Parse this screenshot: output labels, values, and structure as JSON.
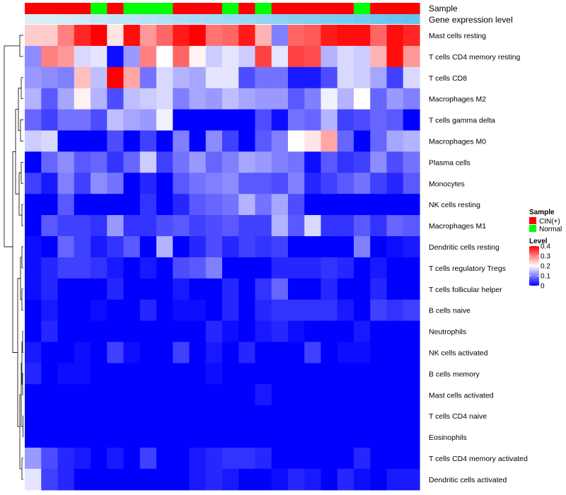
{
  "chart_data": {
    "type": "heatmap",
    "title": "",
    "annotation_tracks": [
      {
        "name": "Sample",
        "values": [
          "CIN(+)",
          "CIN(+)",
          "CIN(+)",
          "CIN(+)",
          "Normal",
          "CIN(+)",
          "Normal",
          "Normal",
          "Normal",
          "CIN(+)",
          "CIN(+)",
          "CIN(+)",
          "Normal",
          "CIN(+)",
          "Normal",
          "CIN(+)",
          "CIN(+)",
          "CIN(+)",
          "CIN(+)",
          "CIN(+)",
          "Normal",
          "CIN(+)",
          "CIN(+)",
          "CIN(+)"
        ]
      },
      {
        "name": "Gene expression level",
        "values": [
          0.0,
          0.02,
          0.04,
          0.06,
          0.09,
          0.11,
          0.13,
          0.15,
          0.17,
          0.2,
          0.22,
          0.24,
          0.26,
          0.28,
          0.3,
          0.33,
          0.35,
          0.37,
          0.39,
          0.41,
          0.43,
          0.46,
          0.48,
          0.5
        ]
      }
    ],
    "rows": [
      "Mast cells resting",
      "T cells CD4 memory resting",
      "T cells CD8",
      "Macrophages M2",
      "T cells gamma delta",
      "Macrophages M0",
      "Plasma cells",
      "Monocytes",
      "NK cells resting",
      "Macrophages M1",
      "Dendritic cells resting",
      "T cells regulatory  Tregs",
      "T cells follicular helper",
      "B cells naive",
      "Neutrophils",
      "NK cells activated",
      "B cells memory",
      "Mast cells activated",
      "T cells CD4 naive",
      "Eosinophils",
      "T cells CD4 memory activated",
      "Dendritic cells activated"
    ],
    "values": [
      [
        0.24,
        0.24,
        0.3,
        0.37,
        0.4,
        0.22,
        0.39,
        0.28,
        0.32,
        0.38,
        0.4,
        0.31,
        0.32,
        0.38,
        0.26,
        0.1,
        0.32,
        0.33,
        0.38,
        0.39,
        0.39,
        0.32,
        0.39,
        0.37
      ],
      [
        0.11,
        0.3,
        0.28,
        0.17,
        0.18,
        0.01,
        0.12,
        0.3,
        0.2,
        0.32,
        0.21,
        0.16,
        0.18,
        0.16,
        0.35,
        0.18,
        0.35,
        0.34,
        0.14,
        0.17,
        0.16,
        0.26,
        0.39,
        0.28
      ],
      [
        0.12,
        0.11,
        0.1,
        0.25,
        0.15,
        0.4,
        0.27,
        0.09,
        0.17,
        0.14,
        0.13,
        0.18,
        0.18,
        0.06,
        0.09,
        0.09,
        0.02,
        0.02,
        0.06,
        0.17,
        0.16,
        0.13,
        0.05,
        0.17
      ],
      [
        0.14,
        0.07,
        0.13,
        0.21,
        0.14,
        0.06,
        0.15,
        0.16,
        0.17,
        0.1,
        0.13,
        0.12,
        0.15,
        0.13,
        0.12,
        0.12,
        0.07,
        0.1,
        0.19,
        0.14,
        0.2,
        0.08,
        0.12,
        0.1
      ],
      [
        0.08,
        0.05,
        0.09,
        0.09,
        0.06,
        0.15,
        0.13,
        0.12,
        0.19,
        0.0,
        0.0,
        0.0,
        0.0,
        0.0,
        0.06,
        0.01,
        0.09,
        0.08,
        0.14,
        0.05,
        0.06,
        0.08,
        0.07,
        0.0
      ],
      [
        0.16,
        0.17,
        0.0,
        0.0,
        0.0,
        0.06,
        0.0,
        0.05,
        0.0,
        0.1,
        0.0,
        0.11,
        0.05,
        0.0,
        0.07,
        0.1,
        0.2,
        0.22,
        0.27,
        0.08,
        0.0,
        0.08,
        0.13,
        0.14
      ],
      [
        0.0,
        0.08,
        0.11,
        0.07,
        0.08,
        0.04,
        0.08,
        0.16,
        0.05,
        0.09,
        0.12,
        0.08,
        0.1,
        0.13,
        0.12,
        0.1,
        0.09,
        0.01,
        0.07,
        0.04,
        0.05,
        0.11,
        0.06,
        0.09
      ],
      [
        0.05,
        0.02,
        0.1,
        0.05,
        0.11,
        0.09,
        0.0,
        0.03,
        0.0,
        0.07,
        0.09,
        0.1,
        0.11,
        0.07,
        0.07,
        0.06,
        0.1,
        0.03,
        0.05,
        0.07,
        0.09,
        0.05,
        0.03,
        0.07
      ],
      [
        0.0,
        0.0,
        0.07,
        0.0,
        0.0,
        0.0,
        0.0,
        0.04,
        0.0,
        0.03,
        0.07,
        0.08,
        0.09,
        0.14,
        0.09,
        0.13,
        0.06,
        0.0,
        0.0,
        0.0,
        0.0,
        0.0,
        0.0,
        0.0
      ],
      [
        0.0,
        0.07,
        0.05,
        0.05,
        0.04,
        0.12,
        0.04,
        0.04,
        0.06,
        0.07,
        0.05,
        0.06,
        0.07,
        0.05,
        0.05,
        0.14,
        0.07,
        0.17,
        0.04,
        0.04,
        0.07,
        0.04,
        0.08,
        0.07
      ],
      [
        0.01,
        0.0,
        0.08,
        0.05,
        0.02,
        0.04,
        0.07,
        0.0,
        0.14,
        0.0,
        0.03,
        0.06,
        0.03,
        0.05,
        0.04,
        0.05,
        0.0,
        0.0,
        0.0,
        0.0,
        0.1,
        0.0,
        0.01,
        0.02
      ],
      [
        0.01,
        0.03,
        0.05,
        0.05,
        0.04,
        0.02,
        0.0,
        0.02,
        0.0,
        0.06,
        0.07,
        0.1,
        0.0,
        0.0,
        0.0,
        0.03,
        0.03,
        0.03,
        0.04,
        0.03,
        0.0,
        0.02,
        0.0,
        0.0
      ],
      [
        0.01,
        0.03,
        0.0,
        0.0,
        0.0,
        0.03,
        0.0,
        0.0,
        0.0,
        0.02,
        0.0,
        0.0,
        0.03,
        0.0,
        0.04,
        0.08,
        0.0,
        0.0,
        0.03,
        0.0,
        0.0,
        0.03,
        0.0,
        0.0
      ],
      [
        0.0,
        0.02,
        0.0,
        0.0,
        0.01,
        0.0,
        0.0,
        0.03,
        0.0,
        0.01,
        0.01,
        0.0,
        0.03,
        0.0,
        0.03,
        0.04,
        0.04,
        0.04,
        0.04,
        0.02,
        0.0,
        0.05,
        0.04,
        0.05
      ],
      [
        0.0,
        0.03,
        0.0,
        0.0,
        0.0,
        0.0,
        0.0,
        0.0,
        0.0,
        0.0,
        0.0,
        0.03,
        0.01,
        0.0,
        0.02,
        0.03,
        0.01,
        0.0,
        0.0,
        0.0,
        0.02,
        0.0,
        0.0,
        0.0
      ],
      [
        0.02,
        0.0,
        0.0,
        0.01,
        0.0,
        0.05,
        0.01,
        0.0,
        0.0,
        0.05,
        0.0,
        0.02,
        0.0,
        0.03,
        0.0,
        0.0,
        0.0,
        0.05,
        0.0,
        0.01,
        0.01,
        0.0,
        0.0,
        0.0
      ],
      [
        0.03,
        0.0,
        0.01,
        0.01,
        0.0,
        0.0,
        0.0,
        0.0,
        0.0,
        0.0,
        0.0,
        0.01,
        0.0,
        0.0,
        0.0,
        0.0,
        0.0,
        0.0,
        0.0,
        0.0,
        0.0,
        0.0,
        0.0,
        0.0
      ],
      [
        0.0,
        0.0,
        0.0,
        0.0,
        0.0,
        0.0,
        0.0,
        0.0,
        0.0,
        0.0,
        0.0,
        0.0,
        0.0,
        0.0,
        0.02,
        0.0,
        0.0,
        0.0,
        0.0,
        0.0,
        0.0,
        0.0,
        0.0,
        0.0
      ],
      [
        0.0,
        0.0,
        0.0,
        0.0,
        0.0,
        0.0,
        0.0,
        0.0,
        0.0,
        0.0,
        0.0,
        0.0,
        0.0,
        0.0,
        0.0,
        0.0,
        0.0,
        0.0,
        0.0,
        0.0,
        0.0,
        0.0,
        0.0,
        0.0
      ],
      [
        0.0,
        0.0,
        0.0,
        0.0,
        0.0,
        0.0,
        0.0,
        0.0,
        0.0,
        0.0,
        0.0,
        0.0,
        0.0,
        0.0,
        0.0,
        0.0,
        0.0,
        0.0,
        0.0,
        0.0,
        0.0,
        0.0,
        0.0,
        0.0
      ],
      [
        0.12,
        0.06,
        0.03,
        0.02,
        0.0,
        0.02,
        0.0,
        0.05,
        0.0,
        0.0,
        0.02,
        0.03,
        0.04,
        0.04,
        0.03,
        0.0,
        0.0,
        0.0,
        0.0,
        0.0,
        0.03,
        0.0,
        0.0,
        0.0
      ],
      [
        0.18,
        0.05,
        0.03,
        0.0,
        0.0,
        0.0,
        0.0,
        0.0,
        0.0,
        0.0,
        0.02,
        0.03,
        0.02,
        0.0,
        0.0,
        0.01,
        0.03,
        0.02,
        0.0,
        0.03,
        0.01,
        0.0,
        0.02,
        0.02
      ]
    ],
    "color_scale": {
      "min": 0,
      "max": 0.4,
      "low": "#0000ff",
      "mid": "#ffffff",
      "high": "#ff0000"
    },
    "legend": {
      "sample_title": "Sample",
      "sample_entries": [
        {
          "label": "CIN(+)",
          "color": "#ff0000"
        },
        {
          "label": "Normal",
          "color": "#00ff00"
        }
      ],
      "level_title": "Level",
      "level_ticks": [
        {
          "value": 0.4,
          "label": "0.4"
        },
        {
          "value": 0.3,
          "label": "0.3"
        },
        {
          "value": 0.2,
          "label": "0.2"
        },
        {
          "value": 0.1,
          "label": "0.1"
        },
        {
          "value": 0,
          "label": "0"
        }
      ],
      "placement": "right"
    },
    "dendrogram": "rows"
  }
}
